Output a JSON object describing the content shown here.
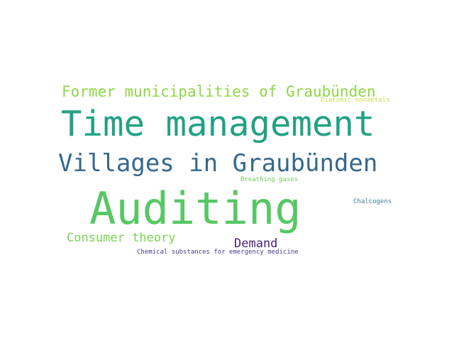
{
  "words": [
    {
      "text": "Former municipalities of Graubünden",
      "color": "#8fd744"
    },
    {
      "text": "Diatomic nonmetals",
      "color": "#c5dd52"
    },
    {
      "text": "Time management",
      "color": "#22a184"
    },
    {
      "text": "Villages in Graubünden",
      "color": "#35688e"
    },
    {
      "text": "Breathing gases",
      "color": "#6ccd5a"
    },
    {
      "text": "Auditing",
      "color": "#58c765"
    },
    {
      "text": "Chalcogens",
      "color": "#3d7a9c"
    },
    {
      "text": "Consumer theory",
      "color": "#7cd250"
    },
    {
      "text": "Demand",
      "color": "#482173"
    },
    {
      "text": "Chemical substances for emergency medicine",
      "color": "#433e85"
    }
  ]
}
